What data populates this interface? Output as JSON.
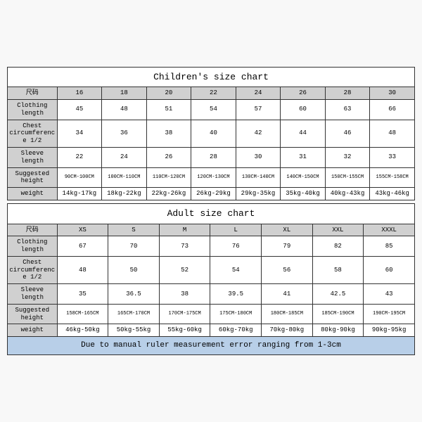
{
  "children": {
    "title": "Children's size chart",
    "header": [
      "尺码",
      "16",
      "18",
      "20",
      "22",
      "24",
      "26",
      "28",
      "30"
    ],
    "rows": [
      {
        "label": "Clothing length",
        "cells": [
          "45",
          "48",
          "51",
          "54",
          "57",
          "60",
          "63",
          "66"
        ]
      },
      {
        "label": "Chest circumference 1/2",
        "cells": [
          "34",
          "36",
          "38",
          "40",
          "42",
          "44",
          "46",
          "48"
        ]
      },
      {
        "label": "Sleeve length",
        "cells": [
          "22",
          "24",
          "26",
          "28",
          "30",
          "31",
          "32",
          "33"
        ]
      },
      {
        "label": "Suggested height",
        "cells": [
          "90CM-100CM",
          "100CM-110CM",
          "110CM-120CM",
          "120CM-130CM",
          "130CM-140CM",
          "140CM-150CM",
          "150CM-155CM",
          "155CM-158CM"
        ],
        "small": true
      },
      {
        "label": "weight",
        "cells": [
          "14kg-17kg",
          "18kg-22kg",
          "22kg-26kg",
          "26kg-29kg",
          "29kg-35kg",
          "35kg-40kg",
          "40kg-43kg",
          "43kg-46kg"
        ]
      }
    ]
  },
  "adult": {
    "title": "Adult size chart",
    "header": [
      "尺码",
      "XS",
      "S",
      "M",
      "L",
      "XL",
      "XXL",
      "XXXL"
    ],
    "rows": [
      {
        "label": "Clothing length",
        "cells": [
          "67",
          "70",
          "73",
          "76",
          "79",
          "82",
          "85"
        ]
      },
      {
        "label": "Chest circumference 1/2",
        "cells": [
          "48",
          "50",
          "52",
          "54",
          "56",
          "58",
          "60"
        ]
      },
      {
        "label": "Sleeve length",
        "cells": [
          "35",
          "36.5",
          "38",
          "39.5",
          "41",
          "42.5",
          "43"
        ]
      },
      {
        "label": "Suggested height",
        "cells": [
          "158CM-165CM",
          "165CM-170CM",
          "170CM-175CM",
          "175CM-180CM",
          "180CM-185CM",
          "185CM-190CM",
          "190CM-195CM"
        ],
        "small": true
      },
      {
        "label": "weight",
        "cells": [
          "46kg-50kg",
          "50kg-55kg",
          "55kg-60kg",
          "60kg-70kg",
          "70kg-80kg",
          "80kg-90kg",
          "90kg-95kg"
        ]
      }
    ],
    "note": "Due to manual ruler measurement error ranging from 1-3cm"
  }
}
